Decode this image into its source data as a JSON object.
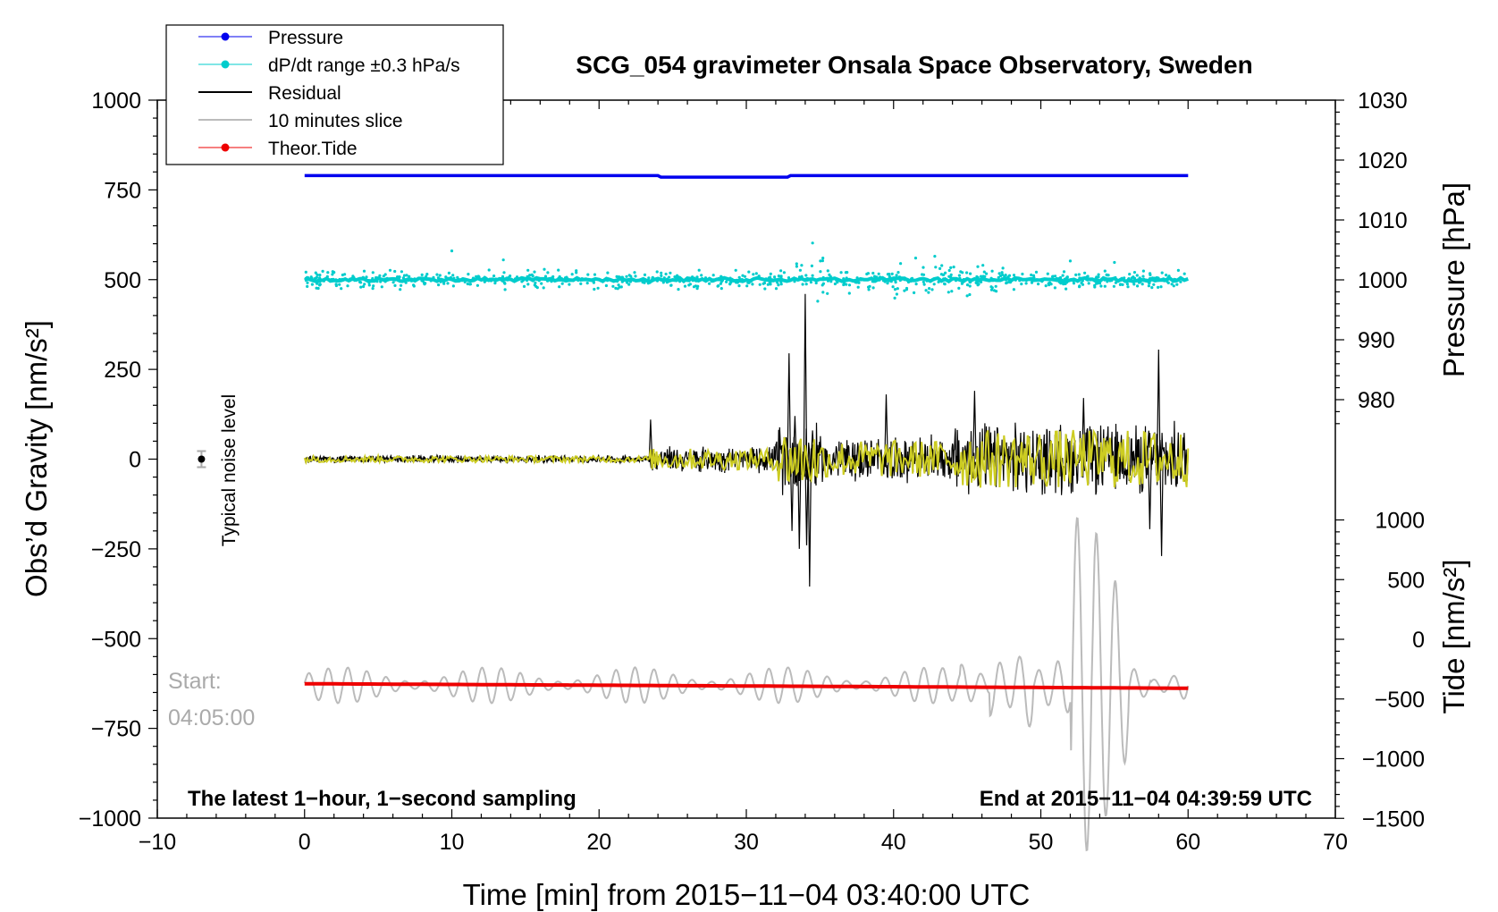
{
  "chart_data": {
    "type": "line",
    "title": "SCG_054 gravimeter Onsala Space Observatory, Sweden",
    "xlabel": "Time [min] from 2015−11−04 03:40:00 UTC",
    "ylabel_left": "Obs’d Gravity [nm/s²]",
    "ylabel_right_top": "Pressure [hPa]",
    "ylabel_right_bottom": "Tide [nm/s²]",
    "xlim": [
      -10,
      70
    ],
    "ylim_left": [
      -1000,
      1000
    ],
    "x_ticks": [
      "−10",
      "0",
      "10",
      "20",
      "30",
      "40",
      "50",
      "60",
      "70"
    ],
    "y_ticks_left": [
      "1000",
      "750",
      "500",
      "250",
      "0",
      "−250",
      "−500",
      "−750",
      "−1000"
    ],
    "pressure_axis": {
      "ticks": [
        "1030",
        "1020",
        "1010",
        "1000",
        "990",
        "980"
      ],
      "values": [
        1030,
        1020,
        1010,
        1000,
        990,
        980
      ]
    },
    "tide_axis": {
      "ticks": [
        "1000",
        "500",
        "0",
        "−500",
        "−1000",
        "−1500"
      ],
      "values": [
        1000,
        500,
        0,
        -500,
        -1000,
        -1500
      ]
    },
    "legend": [
      {
        "label": "Pressure",
        "color": "#0000ee",
        "marker": "dot"
      },
      {
        "label": "dP/dt range ±0.3 hPa/s",
        "color": "#00cccc",
        "marker": "dot"
      },
      {
        "label": "Residual",
        "color": "#000000",
        "marker": "line"
      },
      {
        "label": "10 minutes slice",
        "color": "#bbbbbb",
        "marker": "line"
      },
      {
        "label": "Theor.Tide",
        "color": "#ee0000",
        "marker": "dot"
      }
    ],
    "series": [
      {
        "name": "Pressure",
        "unit": "hPa",
        "x_range": [
          0,
          60
        ],
        "value": 1017.4,
        "color": "#0000ee"
      },
      {
        "name": "dP/dt range ±0.3 hPa/s",
        "x_range": [
          0,
          60
        ],
        "baseline_left": 500,
        "color": "#00cccc"
      },
      {
        "name": "Residual",
        "x_range": [
          0,
          60
        ],
        "baseline_left": 0,
        "peak_max": 460,
        "peak_min": -355,
        "color": "#000000"
      },
      {
        "name": "10 minutes slice",
        "x_range": [
          0,
          60
        ],
        "baseline_left": -630,
        "color": "#bbbbbb"
      },
      {
        "name": "Theor.Tide",
        "unit": "nm/s²",
        "x": [
          0,
          60
        ],
        "values": [
          -372,
          -410
        ],
        "color": "#ee0000"
      }
    ],
    "noise_marker": {
      "x": -7,
      "y": 0,
      "label": "Typical noise level"
    },
    "start_label": [
      "Start:",
      "04:05:00"
    ],
    "bottom_left_note": "The latest 1−hour, 1−second sampling",
    "bottom_right_note": "End at 2015−11−04 04:39:59 UTC",
    "filtered_color": "#cccc22"
  }
}
